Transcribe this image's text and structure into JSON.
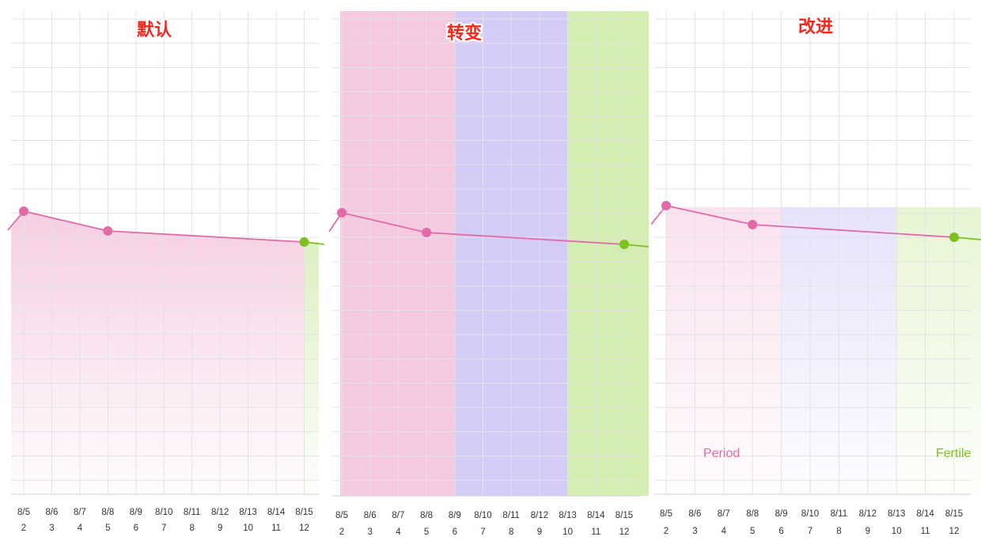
{
  "panels": [
    {
      "title": "默认"
    },
    {
      "title": "转变"
    },
    {
      "title": "改进"
    }
  ],
  "band_labels": {
    "period": "Period",
    "fertile": "Fertile"
  },
  "colors": {
    "period_line": "#e36aa8",
    "fertile_line": "#7cc11f",
    "period_band": "#f5c9df",
    "transition_band": "#d4cbf7",
    "fertile_band": "#d4edb0",
    "grid": "#e3e3e6"
  },
  "chart_data": [
    {
      "type": "area",
      "title": "默认",
      "categories": [
        "8/5",
        "8/6",
        "8/7",
        "8/8",
        "8/9",
        "8/10",
        "8/11",
        "8/12",
        "8/13",
        "8/14",
        "8/15"
      ],
      "day_numbers": [
        "2",
        "3",
        "4",
        "5",
        "6",
        "7",
        "8",
        "9",
        "10",
        "11",
        "12"
      ],
      "points": [
        {
          "x": "8/5",
          "y": 55
        },
        {
          "x": "8/8",
          "y": 53
        },
        {
          "x": "8/15",
          "y": 51.5
        }
      ],
      "point_phases": [
        "period",
        "period",
        "fertile"
      ],
      "ylim": [
        0,
        65
      ],
      "grid": true,
      "background": "period-gradient-fill-under-line"
    },
    {
      "type": "line",
      "title": "转变",
      "categories": [
        "8/5",
        "8/6",
        "8/7",
        "8/8",
        "8/9",
        "8/10",
        "8/11",
        "8/12",
        "8/13",
        "8/14",
        "8/15"
      ],
      "day_numbers": [
        "2",
        "3",
        "4",
        "5",
        "6",
        "7",
        "8",
        "9",
        "10",
        "11",
        "12"
      ],
      "points": [
        {
          "x": "8/5",
          "y": 55
        },
        {
          "x": "8/8",
          "y": 53
        },
        {
          "x": "8/15",
          "y": 51.5
        }
      ],
      "point_phases": [
        "period",
        "period",
        "fertile"
      ],
      "bands": [
        {
          "phase": "period",
          "from": "8/4",
          "to": "8/9"
        },
        {
          "phase": "transition",
          "from": "8/9",
          "to": "8/13"
        },
        {
          "phase": "fertile",
          "from": "8/13",
          "to": "8/16"
        }
      ],
      "ylim": [
        0,
        65
      ],
      "grid": true
    },
    {
      "type": "line",
      "title": "改进",
      "categories": [
        "8/5",
        "8/6",
        "8/7",
        "8/8",
        "8/9",
        "8/10",
        "8/11",
        "8/12",
        "8/13",
        "8/14",
        "8/15"
      ],
      "day_numbers": [
        "2",
        "3",
        "4",
        "5",
        "6",
        "7",
        "8",
        "9",
        "10",
        "11",
        "12"
      ],
      "points": [
        {
          "x": "8/5",
          "y": 55
        },
        {
          "x": "8/8",
          "y": 53
        },
        {
          "x": "8/15",
          "y": 51.5
        }
      ],
      "point_phases": [
        "period",
        "period",
        "fertile"
      ],
      "bands": [
        {
          "phase": "period",
          "from": "8/5",
          "to": "8/9",
          "label": "Period"
        },
        {
          "phase": "transition",
          "from": "8/9",
          "to": "8/13"
        },
        {
          "phase": "fertile",
          "from": "8/13",
          "to": "8/16",
          "label": "Fertile"
        }
      ],
      "ylim": [
        0,
        65
      ],
      "grid": true
    }
  ]
}
